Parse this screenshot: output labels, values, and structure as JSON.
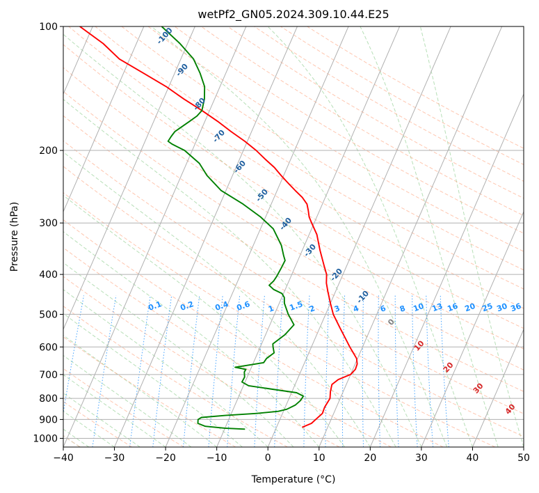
{
  "chart_data": {
    "type": "skew-t",
    "title": "wetPf2_GN05.2024.309.10.44.E25",
    "xlabel": "Temperature (°C)",
    "ylabel": "Pressure (hPa)",
    "xlim": [
      -40,
      50
    ],
    "ylim": [
      1050,
      100
    ],
    "y_scale": "log",
    "x_ticks": [
      "−40",
      "−30",
      "−20",
      "−10",
      "0",
      "10",
      "20",
      "30",
      "40",
      "50"
    ],
    "y_ticks": [
      "100",
      "200",
      "300",
      "400",
      "500",
      "600",
      "700",
      "800",
      "900",
      "1000"
    ],
    "grid": true,
    "series": [
      {
        "color": "#ff0000",
        "points": [
          [
            940,
            5
          ],
          [
            920,
            6.5
          ],
          [
            900,
            7
          ],
          [
            870,
            7.8
          ],
          [
            840,
            7.7
          ],
          [
            800,
            8
          ],
          [
            770,
            7.5
          ],
          [
            740,
            7.2
          ],
          [
            720,
            8
          ],
          [
            700,
            10
          ],
          [
            680,
            10.5
          ],
          [
            660,
            10.4
          ],
          [
            640,
            9.8
          ],
          [
            600,
            7.5
          ],
          [
            570,
            5.8
          ],
          [
            540,
            4
          ],
          [
            500,
            1.5
          ],
          [
            470,
            0
          ],
          [
            440,
            -1.5
          ],
          [
            420,
            -2.5
          ],
          [
            400,
            -3.2
          ],
          [
            380,
            -4.5
          ],
          [
            350,
            -6.5
          ],
          [
            320,
            -8.5
          ],
          [
            300,
            -10.5
          ],
          [
            290,
            -11.5
          ],
          [
            280,
            -12.2
          ],
          [
            270,
            -13
          ],
          [
            260,
            -14.5
          ],
          [
            250,
            -16.5
          ],
          [
            240,
            -18.5
          ],
          [
            230,
            -20.5
          ],
          [
            220,
            -22.5
          ],
          [
            210,
            -25
          ],
          [
            200,
            -27.5
          ],
          [
            190,
            -30.5
          ],
          [
            180,
            -34
          ],
          [
            170,
            -37.5
          ],
          [
            160,
            -41.5
          ],
          [
            150,
            -46
          ],
          [
            140,
            -50.5
          ],
          [
            130,
            -56
          ],
          [
            120,
            -62
          ],
          [
            110,
            -66.5
          ],
          [
            100,
            -72.5
          ]
        ]
      },
      {
        "color": "#008000",
        "points": [
          [
            950,
            -6
          ],
          [
            945,
            -10
          ],
          [
            935,
            -14
          ],
          [
            920,
            -15.7
          ],
          [
            900,
            -16
          ],
          [
            890,
            -15.5
          ],
          [
            880,
            -11
          ],
          [
            870,
            -5
          ],
          [
            860,
            -1
          ],
          [
            850,
            0.5
          ],
          [
            830,
            1.8
          ],
          [
            810,
            2.4
          ],
          [
            790,
            2.6
          ],
          [
            775,
            1
          ],
          [
            760,
            -4
          ],
          [
            745,
            -9
          ],
          [
            730,
            -10.6
          ],
          [
            710,
            -10.5
          ],
          [
            690,
            -11
          ],
          [
            680,
            -10.9
          ],
          [
            672,
            -13.2
          ],
          [
            665,
            -11
          ],
          [
            655,
            -8
          ],
          [
            640,
            -7.8
          ],
          [
            620,
            -6.8
          ],
          [
            600,
            -7.5
          ],
          [
            590,
            -7.8
          ],
          [
            560,
            -6.2
          ],
          [
            530,
            -5.3
          ],
          [
            500,
            -7.3
          ],
          [
            470,
            -9
          ],
          [
            455,
            -9.5
          ],
          [
            445,
            -10.3
          ],
          [
            435,
            -12.3
          ],
          [
            425,
            -13.5
          ],
          [
            415,
            -13
          ],
          [
            405,
            -12.8
          ],
          [
            385,
            -12.6
          ],
          [
            370,
            -12.5
          ],
          [
            360,
            -13.2
          ],
          [
            340,
            -14.5
          ],
          [
            310,
            -17.5
          ],
          [
            290,
            -21
          ],
          [
            270,
            -25.5
          ],
          [
            250,
            -31
          ],
          [
            230,
            -35
          ],
          [
            215,
            -37.5
          ],
          [
            200,
            -41.5
          ],
          [
            193,
            -44.5
          ],
          [
            190,
            -45.5
          ],
          [
            185,
            -45.3
          ],
          [
            180,
            -45
          ],
          [
            175,
            -44
          ],
          [
            170,
            -43
          ],
          [
            165,
            -42
          ],
          [
            160,
            -41.5
          ],
          [
            150,
            -42
          ],
          [
            140,
            -43
          ],
          [
            130,
            -45
          ],
          [
            120,
            -47.5
          ],
          [
            110,
            -51.5
          ],
          [
            100,
            -56.5
          ]
        ]
      }
    ],
    "dry_adiabat_labels": [
      "-100",
      "-90",
      "-80",
      "-70",
      "-60",
      "-50",
      "-40",
      "-30",
      "-20",
      "-10",
      "0",
      "10",
      "20",
      "30",
      "40"
    ],
    "mixing_ratio_labels": [
      "0.1",
      "0.2",
      "0.4",
      "0.6",
      "1",
      "1.5",
      "2",
      "3",
      "4",
      "6",
      "8",
      "10",
      "13",
      "16",
      "20",
      "25",
      "30",
      "36"
    ]
  }
}
